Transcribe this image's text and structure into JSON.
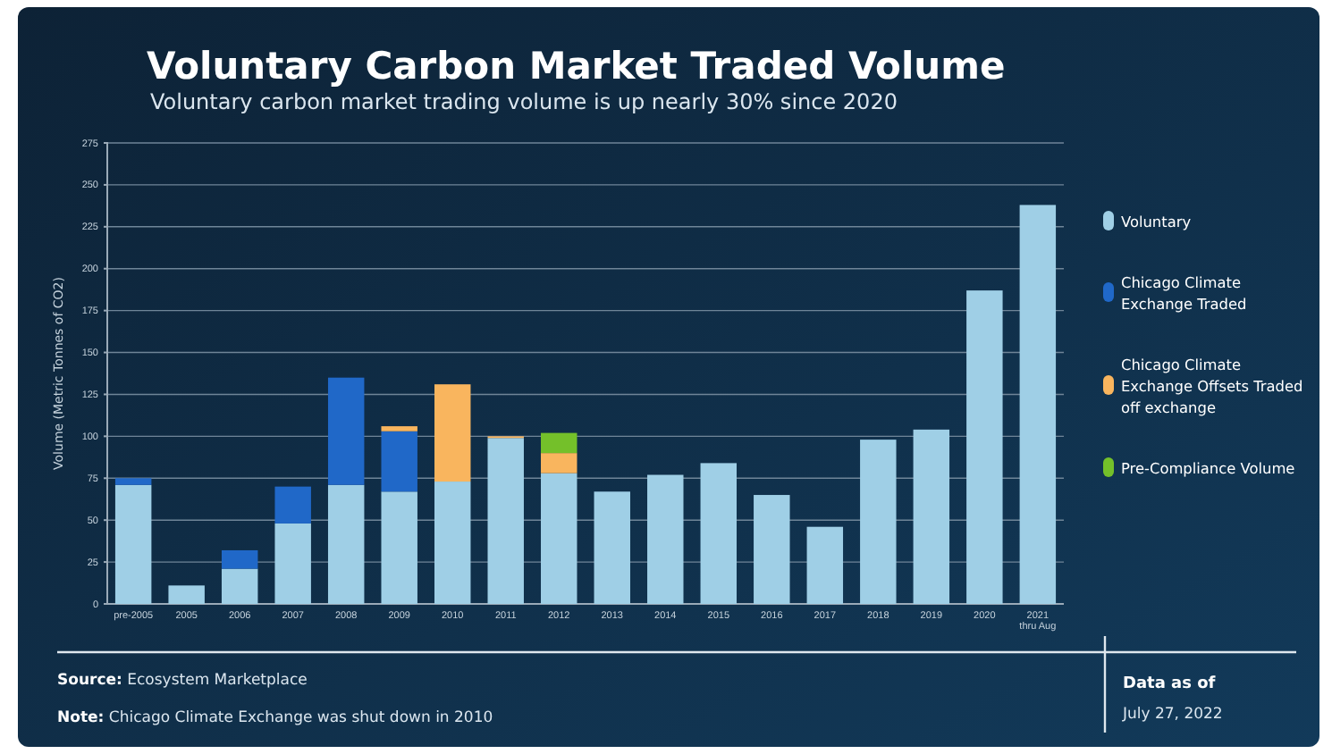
{
  "chart_data": {
    "type": "bar",
    "title": "Voluntary Carbon Market Traded Volume",
    "subtitle": "Voluntary carbon market trading volume is up nearly 30% since 2020",
    "ylabel": "Volume (Metric Tonnes of CO2)",
    "categories": [
      "pre-2005",
      "2005",
      "2006",
      "2007",
      "2008",
      "2009",
      "2010",
      "2011",
      "2012",
      "2013",
      "2014",
      "2015",
      "2016",
      "2017",
      "2018",
      "2019",
      "2020",
      "2021\nthru Aug"
    ],
    "stacked": true,
    "series": [
      {
        "name": "Voluntary",
        "color": "#9fcfe6",
        "values": [
          71,
          11,
          21,
          48,
          71,
          67,
          73,
          99,
          78,
          67,
          77,
          84,
          65,
          46,
          98,
          104,
          187,
          238
        ]
      },
      {
        "name": "Chicago Climate Exchange Traded",
        "color": "#2068c8",
        "values": [
          4,
          null,
          11,
          22,
          64,
          36,
          null,
          null,
          null,
          null,
          null,
          null,
          null,
          null,
          null,
          null,
          null,
          null
        ]
      },
      {
        "name": "Chicago Climate Exchange Offsets Traded off exchange",
        "color": "#f9b55e",
        "values": [
          null,
          null,
          null,
          null,
          null,
          3,
          58,
          1,
          12,
          null,
          null,
          null,
          null,
          null,
          null,
          null,
          null,
          null
        ]
      },
      {
        "name": "Pre-Compliance Volume",
        "color": "#74c02a",
        "values": [
          null,
          null,
          null,
          null,
          null,
          null,
          null,
          null,
          12,
          null,
          null,
          null,
          null,
          null,
          null,
          null,
          null,
          null
        ]
      }
    ],
    "ylim": [
      0,
      275
    ],
    "yticks": [
      0,
      25,
      50,
      75,
      100,
      125,
      150,
      175,
      200,
      225,
      250,
      275
    ],
    "grid": "y",
    "legend": "right",
    "annotations": [
      "Source: Ecosystem Marketplace",
      "Note: Chicago Climate Exchange was shut down in 2010",
      "Data as of",
      "July 27, 2022"
    ]
  }
}
